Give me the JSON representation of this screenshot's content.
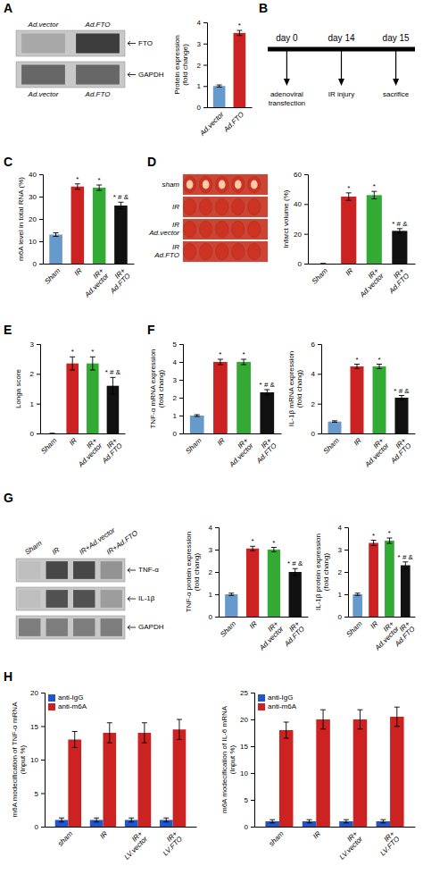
{
  "chart_data": [
    {
      "type": "blot",
      "title": "A",
      "categories": [
        "Ad.vector",
        "Ad.FTO"
      ],
      "series": [
        {
          "name": "FTO",
          "values": [
            0.4,
            0.9
          ]
        },
        {
          "name": "GAPDH",
          "values": [
            0.7,
            0.7
          ]
        }
      ]
    },
    {
      "type": "bar",
      "categories": [
        "Ad.vector",
        "Ad.FTO"
      ],
      "values": [
        1.0,
        3.5
      ],
      "errors": [
        0.05,
        0.12
      ],
      "colors": [
        "#6699CC",
        "#CC2222"
      ],
      "ylabel": "Protein expression\n(fold change)",
      "ylim": [
        0,
        4
      ],
      "yticks": [
        0,
        1,
        2,
        3,
        4
      ],
      "annotations": [
        null,
        "*"
      ]
    },
    {
      "type": "timeline",
      "title": "B",
      "categories": [
        "day 0",
        "day 14",
        "day 15"
      ],
      "annotations": [
        "adenoviral\ntransfection",
        "IR injury",
        "sacrifice"
      ]
    },
    {
      "type": "bar",
      "title": "C",
      "categories": [
        "Sham",
        "IR",
        "IR+Ad.vector",
        "IR+Ad.FTO"
      ],
      "values": [
        13.0,
        34.5,
        34.0,
        26.0
      ],
      "errors": [
        0.8,
        1.2,
        1.2,
        1.5
      ],
      "colors": [
        "#6699CC",
        "#CC2222",
        "#33AA33",
        "#111111"
      ],
      "ylabel": "m6A level in total RNA (%)",
      "ylim": [
        0,
        40
      ],
      "yticks": [
        0,
        10,
        20,
        30,
        40
      ],
      "annotations": [
        null,
        "*",
        "*",
        "* # &"
      ]
    },
    {
      "type": "image",
      "title": "D",
      "categories": [
        "sham",
        "IR",
        "IR\nAd.vector",
        "IR\nAd.FTO"
      ]
    },
    {
      "type": "bar",
      "categories": [
        "Sham",
        "IR",
        "IR+Ad.vector",
        "IR+Ad.FTO"
      ],
      "values": [
        0,
        45,
        46,
        22
      ],
      "errors": [
        0,
        2.5,
        2.5,
        1.5
      ],
      "colors": [
        "#6699CC",
        "#CC2222",
        "#33AA33",
        "#111111"
      ],
      "ylabel": "Infarct volume (%)",
      "ylim": [
        0,
        60
      ],
      "yticks": [
        0,
        20,
        40,
        60
      ],
      "annotations": [
        null,
        "*",
        "*",
        "* # &"
      ]
    },
    {
      "type": "bar",
      "title": "E",
      "categories": [
        "Sham",
        "IR",
        "IR+Ad.vector",
        "IR+Ad.FTO"
      ],
      "values": [
        0,
        2.35,
        2.35,
        1.6
      ],
      "errors": [
        0,
        0.22,
        0.22,
        0.28
      ],
      "colors": [
        "#6699CC",
        "#CC2222",
        "#33AA33",
        "#111111"
      ],
      "ylabel": "Longa score",
      "ylim": [
        0,
        3
      ],
      "yticks": [
        0,
        1,
        2,
        3
      ],
      "annotations": [
        null,
        "*",
        "*",
        "* # &"
      ]
    },
    {
      "type": "bar",
      "title": "F",
      "categories": [
        "Sham",
        "IR",
        "IR+Ad.vector",
        "IR+Ad.FTO"
      ],
      "values": [
        1.0,
        4.0,
        4.0,
        2.3
      ],
      "errors": [
        0.05,
        0.15,
        0.15,
        0.15
      ],
      "colors": [
        "#6699CC",
        "#CC2222",
        "#33AA33",
        "#111111"
      ],
      "ylabel": "TNF-α mRNA expression\n(fold chang)",
      "ylim": [
        0,
        5
      ],
      "yticks": [
        0,
        1,
        2,
        3,
        4,
        5
      ],
      "annotations": [
        null,
        "*",
        "*",
        "* # &"
      ]
    },
    {
      "type": "bar",
      "categories": [
        "Sham",
        "IR",
        "IR+Ad.vector",
        "IR+Ad.FTO"
      ],
      "values": [
        0.8,
        4.5,
        4.5,
        2.4
      ],
      "errors": [
        0.05,
        0.15,
        0.15,
        0.15
      ],
      "colors": [
        "#6699CC",
        "#CC2222",
        "#33AA33",
        "#111111"
      ],
      "ylabel": "IL-1β mRNA expression\n(fold chang)",
      "ylim": [
        0,
        6
      ],
      "yticks": [
        0,
        2,
        4,
        6
      ],
      "annotations": [
        null,
        "*",
        "*",
        "* # &"
      ]
    },
    {
      "type": "blot",
      "title": "G",
      "categories": [
        "Sham",
        "IR",
        "IR+Ad.vector",
        "IR+Ad.FTO"
      ],
      "series": [
        {
          "name": "TNF-α",
          "values": [
            0.3,
            0.85,
            0.85,
            0.5
          ]
        },
        {
          "name": "IL-1β",
          "values": [
            0.3,
            0.8,
            0.8,
            0.45
          ]
        },
        {
          "name": "GAPDH",
          "values": [
            0.6,
            0.6,
            0.6,
            0.6
          ]
        }
      ]
    },
    {
      "type": "bar",
      "categories": [
        "Sham",
        "IR",
        "IR+Ad.vector",
        "IR+Ad.FTO"
      ],
      "values": [
        1.0,
        3.05,
        3.0,
        2.0
      ],
      "errors": [
        0.05,
        0.1,
        0.1,
        0.15
      ],
      "colors": [
        "#6699CC",
        "#CC2222",
        "#33AA33",
        "#111111"
      ],
      "ylabel": "TNF-α protein expression\n(fold chang)",
      "ylim": [
        0,
        4
      ],
      "yticks": [
        0,
        1,
        2,
        3,
        4
      ],
      "annotations": [
        null,
        "*",
        "*",
        "* # &"
      ]
    },
    {
      "type": "bar",
      "categories": [
        "Sham",
        "IR",
        "IR+Ad.vector",
        "IR+Ad.FTO"
      ],
      "values": [
        1.0,
        3.3,
        3.4,
        2.3
      ],
      "errors": [
        0.05,
        0.12,
        0.12,
        0.15
      ],
      "colors": [
        "#6699CC",
        "#CC2222",
        "#33AA33",
        "#111111"
      ],
      "ylabel": "IL-1β protein expression\n(fold chang)",
      "ylim": [
        0,
        4
      ],
      "yticks": [
        0,
        1,
        2,
        3,
        4
      ],
      "annotations": [
        null,
        "*",
        "*",
        "* # &"
      ]
    },
    {
      "type": "bar",
      "title": "H",
      "categories": [
        "sham",
        "IR",
        "IR+LV.vector",
        "IR+LV.FTO"
      ],
      "series": [
        {
          "name": "anti-IgG",
          "color": "#2255CC",
          "values": [
            1.0,
            1.0,
            1.0,
            1.0
          ],
          "errors": [
            0.3,
            0.3,
            0.3,
            0.3
          ]
        },
        {
          "name": "anti-m6A",
          "color": "#CC2222",
          "values": [
            13.0,
            14.0,
            14.0,
            14.5
          ],
          "errors": [
            1.2,
            1.5,
            1.5,
            1.5
          ]
        }
      ],
      "ylabel": "m6A modecification of TNF-α mRNA\n(Input %)",
      "ylim": [
        0,
        20
      ],
      "yticks": [
        0,
        5,
        10,
        15,
        20
      ],
      "legend": "upper left"
    },
    {
      "type": "bar",
      "categories": [
        "sham",
        "IR",
        "IR+LV.vector",
        "IR+LV.FTO"
      ],
      "series": [
        {
          "name": "anti-IgG",
          "color": "#2255CC",
          "values": [
            1.0,
            1.0,
            1.0,
            1.0
          ],
          "errors": [
            0.3,
            0.3,
            0.3,
            0.3
          ]
        },
        {
          "name": "anti-m6A",
          "color": "#CC2222",
          "values": [
            18.0,
            20.0,
            20.0,
            20.5
          ],
          "errors": [
            1.5,
            1.8,
            1.8,
            1.8
          ]
        }
      ],
      "ylabel": "m6A modecification of IL-6 mRNA\n(Input %)",
      "ylim": [
        0,
        25
      ],
      "yticks": [
        0,
        5,
        10,
        15,
        20,
        25
      ],
      "legend": "upper left"
    }
  ]
}
